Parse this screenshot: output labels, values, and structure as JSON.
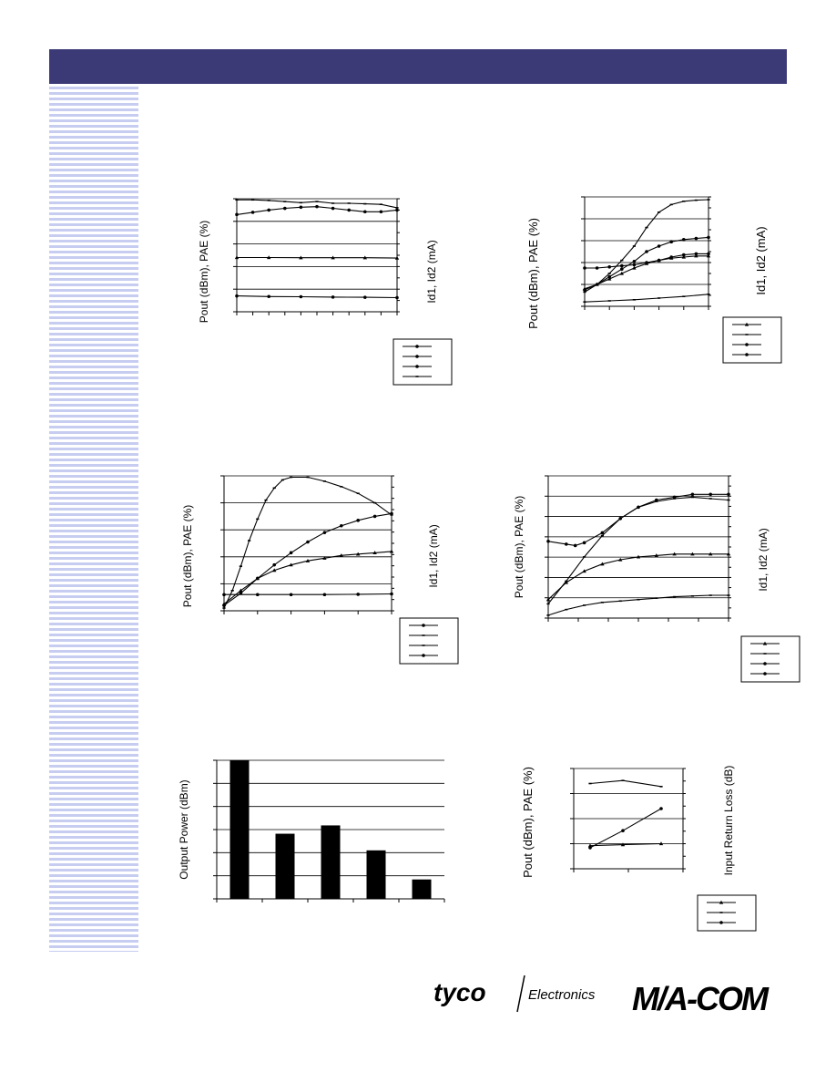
{
  "page": {
    "header_color": "#3b3a76",
    "stripe_color": "#c7cdf0"
  },
  "logos": {
    "tyco_brand": "tyco",
    "tyco_division": "Electronics",
    "macom_brand": "M/A-COM"
  },
  "chart_data": [
    {
      "id": "c1",
      "type": "line",
      "ylabel": "Pout (dBm), PAE (%)",
      "y2label": "Id1, Id2 (mA)",
      "ylim": [
        0,
        1
      ],
      "xlim": [
        0,
        1
      ],
      "grid": true,
      "legend": {
        "placement": "bottom-right",
        "markers": [
          "circle",
          "circle",
          "circle",
          "dash"
        ]
      },
      "series": [
        {
          "marker": "dash",
          "points": [
            [
              0,
              0.99
            ],
            [
              0.1,
              0.99
            ],
            [
              0.2,
              0.985
            ],
            [
              0.3,
              0.975
            ],
            [
              0.4,
              0.965
            ],
            [
              0.5,
              0.975
            ],
            [
              0.6,
              0.96
            ],
            [
              0.7,
              0.96
            ],
            [
              0.8,
              0.955
            ],
            [
              0.9,
              0.95
            ],
            [
              1,
              0.92
            ]
          ]
        },
        {
          "marker": "circle",
          "points": [
            [
              0,
              0.86
            ],
            [
              0.1,
              0.88
            ],
            [
              0.2,
              0.9
            ],
            [
              0.3,
              0.915
            ],
            [
              0.4,
              0.925
            ],
            [
              0.5,
              0.93
            ],
            [
              0.6,
              0.915
            ],
            [
              0.7,
              0.9
            ],
            [
              0.8,
              0.885
            ],
            [
              0.9,
              0.885
            ],
            [
              1,
              0.9
            ]
          ]
        },
        {
          "marker": "triangle",
          "points": [
            [
              0,
              0.48
            ],
            [
              0.2,
              0.48
            ],
            [
              0.4,
              0.478
            ],
            [
              0.6,
              0.478
            ],
            [
              0.8,
              0.478
            ],
            [
              1,
              0.475
            ]
          ]
        },
        {
          "marker": "circle",
          "points": [
            [
              0,
              0.14
            ],
            [
              0.2,
              0.135
            ],
            [
              0.4,
              0.133
            ],
            [
              0.6,
              0.13
            ],
            [
              0.8,
              0.128
            ],
            [
              1,
              0.125
            ]
          ]
        }
      ]
    },
    {
      "id": "c2",
      "type": "line",
      "ylabel": "Pout (dBm), PAE (%)",
      "y2label": "Id1, Id2 (mA)",
      "ylim": [
        0,
        1
      ],
      "xlim": [
        0,
        1
      ],
      "grid": true,
      "legend": {
        "placement": "bottom-right",
        "markers": [
          "triangle",
          "dash",
          "circle",
          "circle"
        ]
      },
      "series": [
        {
          "marker": "dash",
          "points": [
            [
              0,
              0.13
            ],
            [
              0.1,
              0.2
            ],
            [
              0.2,
              0.3
            ],
            [
              0.3,
              0.42
            ],
            [
              0.4,
              0.55
            ],
            [
              0.5,
              0.72
            ],
            [
              0.6,
              0.86
            ],
            [
              0.7,
              0.93
            ],
            [
              0.8,
              0.96
            ],
            [
              0.9,
              0.97
            ],
            [
              1,
              0.975
            ]
          ]
        },
        {
          "marker": "circle",
          "points": [
            [
              0,
              0.15
            ],
            [
              0.1,
              0.2
            ],
            [
              0.2,
              0.27
            ],
            [
              0.3,
              0.34
            ],
            [
              0.4,
              0.41
            ],
            [
              0.5,
              0.5
            ],
            [
              0.6,
              0.55
            ],
            [
              0.7,
              0.59
            ],
            [
              0.8,
              0.61
            ],
            [
              0.9,
              0.62
            ],
            [
              1,
              0.63
            ]
          ]
        },
        {
          "marker": "circle",
          "points": [
            [
              0,
              0.35
            ],
            [
              0.1,
              0.35
            ],
            [
              0.2,
              0.36
            ],
            [
              0.3,
              0.37
            ],
            [
              0.4,
              0.38
            ],
            [
              0.5,
              0.4
            ],
            [
              0.6,
              0.42
            ],
            [
              0.7,
              0.45
            ],
            [
              0.8,
              0.47
            ],
            [
              0.9,
              0.48
            ],
            [
              1,
              0.48
            ]
          ]
        },
        {
          "marker": "triangle",
          "points": [
            [
              0,
              0.16
            ],
            [
              0.1,
              0.2
            ],
            [
              0.2,
              0.25
            ],
            [
              0.3,
              0.3
            ],
            [
              0.4,
              0.35
            ],
            [
              0.5,
              0.39
            ],
            [
              0.6,
              0.42
            ],
            [
              0.7,
              0.44
            ],
            [
              0.8,
              0.45
            ],
            [
              0.9,
              0.46
            ],
            [
              1,
              0.46
            ]
          ]
        },
        {
          "marker": "dash",
          "points": [
            [
              0,
              0.04
            ],
            [
              0.2,
              0.05
            ],
            [
              0.4,
              0.06
            ],
            [
              0.6,
              0.075
            ],
            [
              0.8,
              0.09
            ],
            [
              1,
              0.11
            ]
          ]
        }
      ]
    },
    {
      "id": "c3",
      "type": "line",
      "ylabel": "Pout (dBm), PAE (%)",
      "y2label": "Id1, Id2 (mA)",
      "ylim": [
        0,
        1
      ],
      "xlim": [
        0,
        1
      ],
      "grid": true,
      "legend": {
        "placement": "bottom-right",
        "markers": [
          "circle",
          "dash",
          "dash",
          "circle"
        ]
      },
      "series": [
        {
          "marker": "dash",
          "points": [
            [
              0,
              0.02
            ],
            [
              0.05,
              0.15
            ],
            [
              0.1,
              0.33
            ],
            [
              0.15,
              0.52
            ],
            [
              0.2,
              0.68
            ],
            [
              0.25,
              0.82
            ],
            [
              0.3,
              0.91
            ],
            [
              0.35,
              0.97
            ],
            [
              0.4,
              0.99
            ],
            [
              0.5,
              0.99
            ],
            [
              0.6,
              0.96
            ],
            [
              0.7,
              0.92
            ],
            [
              0.8,
              0.87
            ],
            [
              0.9,
              0.8
            ],
            [
              1,
              0.71
            ]
          ]
        },
        {
          "marker": "circle",
          "points": [
            [
              0,
              0.04
            ],
            [
              0.1,
              0.13
            ],
            [
              0.2,
              0.24
            ],
            [
              0.3,
              0.34
            ],
            [
              0.4,
              0.43
            ],
            [
              0.5,
              0.51
            ],
            [
              0.6,
              0.58
            ],
            [
              0.7,
              0.63
            ],
            [
              0.8,
              0.67
            ],
            [
              0.9,
              0.7
            ],
            [
              1,
              0.72
            ]
          ]
        },
        {
          "marker": "triangle",
          "points": [
            [
              0,
              0.05
            ],
            [
              0.1,
              0.15
            ],
            [
              0.2,
              0.24
            ],
            [
              0.3,
              0.3
            ],
            [
              0.4,
              0.34
            ],
            [
              0.5,
              0.37
            ],
            [
              0.6,
              0.39
            ],
            [
              0.7,
              0.41
            ],
            [
              0.8,
              0.42
            ],
            [
              0.9,
              0.43
            ],
            [
              1,
              0.44
            ]
          ]
        },
        {
          "marker": "circle",
          "points": [
            [
              0,
              0.12
            ],
            [
              0.2,
              0.12
            ],
            [
              0.4,
              0.12
            ],
            [
              0.6,
              0.12
            ],
            [
              0.8,
              0.122
            ],
            [
              1,
              0.125
            ]
          ]
        }
      ]
    },
    {
      "id": "c4",
      "type": "line",
      "ylabel": "Pout (dBm), PAE (%)",
      "y2label": "Id1, Id2 (mA)",
      "ylim": [
        0,
        1
      ],
      "xlim": [
        0,
        1
      ],
      "grid": true,
      "legend": {
        "placement": "bottom-right",
        "markers": [
          "triangle",
          "dash",
          "circle",
          "circle"
        ]
      },
      "series": [
        {
          "marker": "dash",
          "points": [
            [
              0,
              0.1
            ],
            [
              0.1,
              0.26
            ],
            [
              0.2,
              0.43
            ],
            [
              0.3,
              0.58
            ],
            [
              0.4,
              0.7
            ],
            [
              0.5,
              0.78
            ],
            [
              0.6,
              0.82
            ],
            [
              0.7,
              0.84
            ],
            [
              0.8,
              0.85
            ],
            [
              0.9,
              0.84
            ],
            [
              1,
              0.83
            ]
          ]
        },
        {
          "marker": "circle",
          "points": [
            [
              0,
              0.54
            ],
            [
              0.1,
              0.52
            ],
            [
              0.15,
              0.51
            ],
            [
              0.2,
              0.53
            ],
            [
              0.3,
              0.6
            ],
            [
              0.4,
              0.7
            ],
            [
              0.5,
              0.78
            ],
            [
              0.6,
              0.83
            ],
            [
              0.7,
              0.85
            ],
            [
              0.8,
              0.87
            ],
            [
              0.9,
              0.87
            ],
            [
              1,
              0.87
            ]
          ]
        },
        {
          "marker": "triangle",
          "points": [
            [
              0,
              0.13
            ],
            [
              0.1,
              0.25
            ],
            [
              0.2,
              0.33
            ],
            [
              0.3,
              0.38
            ],
            [
              0.4,
              0.41
            ],
            [
              0.5,
              0.43
            ],
            [
              0.6,
              0.44
            ],
            [
              0.7,
              0.45
            ],
            [
              0.8,
              0.45
            ],
            [
              0.9,
              0.45
            ],
            [
              1,
              0.45
            ]
          ]
        },
        {
          "marker": "dash",
          "points": [
            [
              0,
              0.02
            ],
            [
              0.1,
              0.06
            ],
            [
              0.2,
              0.09
            ],
            [
              0.3,
              0.11
            ],
            [
              0.4,
              0.12
            ],
            [
              0.5,
              0.13
            ],
            [
              0.6,
              0.14
            ],
            [
              0.7,
              0.15
            ],
            [
              0.8,
              0.155
            ],
            [
              0.9,
              0.16
            ],
            [
              1,
              0.16
            ]
          ]
        }
      ]
    },
    {
      "id": "c5",
      "type": "bar",
      "ylabel": "Output Power (dBm)",
      "ylim": [
        0,
        1
      ],
      "grid": true,
      "values": [
        1.0,
        0.47,
        0.53,
        0.35,
        0.14
      ]
    },
    {
      "id": "c6",
      "type": "line",
      "ylabel": "Pout (dBm), PAE (%)",
      "y2label": "Input Return Loss (dB)",
      "ylim": [
        0,
        1
      ],
      "xlim": [
        0,
        1
      ],
      "grid": true,
      "legend": {
        "placement": "bottom-right",
        "markers": [
          "triangle",
          "dash",
          "circle"
        ]
      },
      "series": [
        {
          "marker": "dash",
          "points": [
            [
              0.15,
              0.85
            ],
            [
              0.45,
              0.88
            ],
            [
              0.8,
              0.82
            ]
          ]
        },
        {
          "marker": "circle",
          "points": [
            [
              0.15,
              0.21
            ],
            [
              0.45,
              0.38
            ],
            [
              0.8,
              0.6
            ]
          ]
        },
        {
          "marker": "triangle",
          "points": [
            [
              0.15,
              0.23
            ],
            [
              0.45,
              0.24
            ],
            [
              0.8,
              0.25
            ]
          ]
        }
      ]
    }
  ]
}
